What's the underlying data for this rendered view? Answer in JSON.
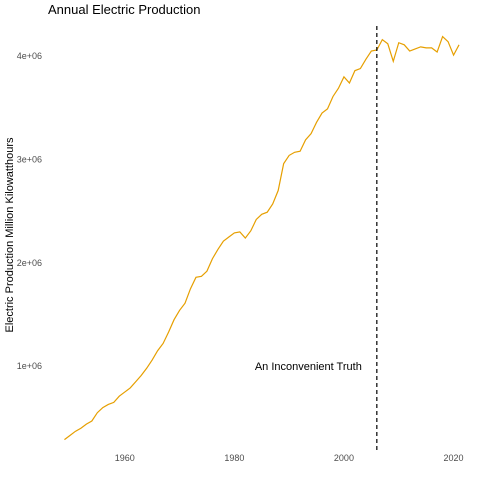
{
  "chart_data": {
    "type": "line",
    "title": "Annual Electric Production",
    "xlabel": "",
    "ylabel": "Electric Production Million Kilowatthours",
    "xlim": [
      1946,
      2023
    ],
    "ylim": [
      170000,
      4350000
    ],
    "x_ticks": [
      1960,
      1980,
      2000,
      2020
    ],
    "y_ticks": [
      1000000,
      2000000,
      3000000,
      4000000
    ],
    "y_tick_labels": [
      "1e+06",
      "2e+06",
      "3e+06",
      "4e+06"
    ],
    "grid": false,
    "line_color": "#E69F00",
    "vline": {
      "x": 2006,
      "style": "dashed",
      "color": "#000000"
    },
    "annotation": {
      "text": "An Inconvenient Truth",
      "x": 1993.5,
      "y": 1000000
    },
    "series": [
      {
        "x": [
          1949,
          1950,
          1951,
          1952,
          1953,
          1954,
          1955,
          1956,
          1957,
          1958,
          1959,
          1960,
          1961,
          1962,
          1963,
          1964,
          1965,
          1966,
          1967,
          1968,
          1969,
          1970,
          1971,
          1972,
          1973,
          1974,
          1975,
          1976,
          1977,
          1978,
          1979,
          1980,
          1981,
          1982,
          1983,
          1984,
          1985,
          1986,
          1987,
          1988,
          1989,
          1990,
          1991,
          1992,
          1993,
          1994,
          1995,
          1996,
          1997,
          1998,
          1999,
          2000,
          2001,
          2002,
          2003,
          2004,
          2005,
          2006,
          2007,
          2008,
          2009,
          2010,
          2011,
          2012,
          2013,
          2014,
          2015,
          2016,
          2017,
          2018,
          2019,
          2020,
          2021
        ],
        "y": [
          290000,
          330000,
          370000,
          400000,
          440000,
          470000,
          550000,
          600000,
          630000,
          650000,
          710000,
          750000,
          790000,
          850000,
          910000,
          980000,
          1060000,
          1150000,
          1220000,
          1330000,
          1450000,
          1540000,
          1610000,
          1750000,
          1860000,
          1870000,
          1920000,
          2040000,
          2130000,
          2210000,
          2250000,
          2290000,
          2300000,
          2240000,
          2310000,
          2420000,
          2470000,
          2490000,
          2570000,
          2700000,
          2960000,
          3040000,
          3070000,
          3080000,
          3190000,
          3250000,
          3360000,
          3450000,
          3490000,
          3610000,
          3690000,
          3800000,
          3740000,
          3860000,
          3880000,
          3970000,
          4050000,
          4060000,
          4160000,
          4120000,
          3950000,
          4130000,
          4110000,
          4050000,
          4070000,
          4090000,
          4080000,
          4080000,
          4040000,
          4190000,
          4140000,
          4010000,
          4110000
        ]
      }
    ]
  }
}
